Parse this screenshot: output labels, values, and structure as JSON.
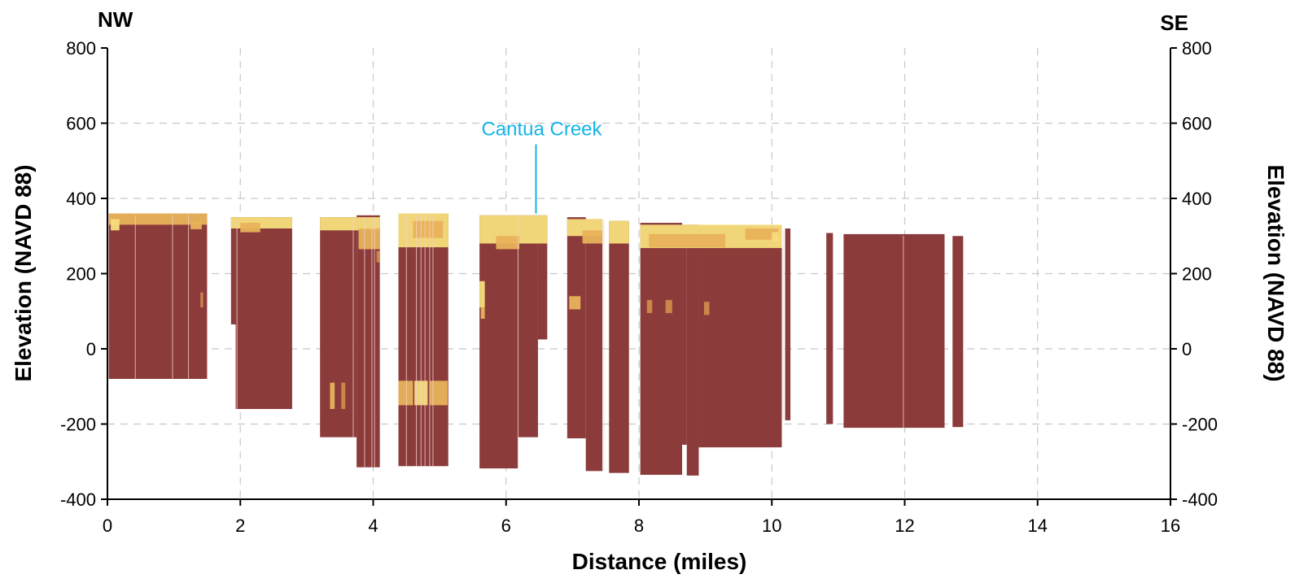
{
  "chart_data": {
    "type": "bar",
    "xlabel": "Distance (miles)",
    "ylabel": "Elevation (NAVD 88)",
    "ylabel_right": "Elevation (NAVD 88)",
    "corner_labels": {
      "left": "NW",
      "right": "SE"
    },
    "xlim": [
      0,
      16
    ],
    "ylim": [
      -400,
      800
    ],
    "x_ticks": [
      "0",
      "2",
      "4",
      "6",
      "8",
      "10",
      "12",
      "14",
      "16"
    ],
    "y_ticks": [
      "-400",
      "-200",
      "0",
      "200",
      "400",
      "600",
      "800"
    ],
    "y_ticks_right": [
      "-400",
      "-200",
      "0",
      "200",
      "400",
      "600",
      "800"
    ],
    "grid": true,
    "colors": {
      "base": "#8c3b3b",
      "light": "#f7dd7c",
      "mid": "#e8b25a",
      "dark": "#cf8a4a",
      "annotation": "#14b4e8",
      "gap": "#f0d0cc"
    },
    "annotations": [
      {
        "text": "Cantua Creek",
        "x": 6.45,
        "y": 360
      }
    ],
    "segments": [
      {
        "x0": 0.02,
        "x1": 1.5,
        "top": 360,
        "bottom": -80
      },
      {
        "x0": 1.86,
        "x1": 1.93,
        "top": 350,
        "bottom": 65
      },
      {
        "x0": 1.93,
        "x1": 2.78,
        "top": 350,
        "bottom": -160
      },
      {
        "x0": 3.2,
        "x1": 3.75,
        "top": 350,
        "bottom": -235
      },
      {
        "x0": 3.75,
        "x1": 4.1,
        "top": 355,
        "bottom": -315
      },
      {
        "x0": 4.38,
        "x1": 5.13,
        "top": 360,
        "bottom": -312
      },
      {
        "x0": 5.6,
        "x1": 6.18,
        "top": 355,
        "bottom": -318
      },
      {
        "x0": 6.18,
        "x1": 6.48,
        "top": 355,
        "bottom": -235
      },
      {
        "x0": 6.48,
        "x1": 6.62,
        "top": 355,
        "bottom": 25
      },
      {
        "x0": 6.92,
        "x1": 7.2,
        "top": 350,
        "bottom": -238
      },
      {
        "x0": 7.2,
        "x1": 7.45,
        "top": 345,
        "bottom": -325
      },
      {
        "x0": 7.55,
        "x1": 7.85,
        "top": 340,
        "bottom": -330
      },
      {
        "x0": 8.02,
        "x1": 8.65,
        "top": 335,
        "bottom": -335
      },
      {
        "x0": 8.65,
        "x1": 8.72,
        "top": 330,
        "bottom": -255
      },
      {
        "x0": 8.72,
        "x1": 8.9,
        "top": 330,
        "bottom": -337
      },
      {
        "x0": 8.9,
        "x1": 10.15,
        "top": 328,
        "bottom": -262
      },
      {
        "x0": 10.2,
        "x1": 10.28,
        "top": 320,
        "bottom": -190
      },
      {
        "x0": 10.82,
        "x1": 10.92,
        "top": 308,
        "bottom": -200
      },
      {
        "x0": 11.08,
        "x1": 12.6,
        "top": 305,
        "bottom": -210
      },
      {
        "x0": 12.72,
        "x1": 12.88,
        "top": 300,
        "bottom": -208
      }
    ],
    "patches": [
      {
        "x0": 0.02,
        "x1": 1.5,
        "top": 360,
        "bottom": 330,
        "tone": "mid"
      },
      {
        "x0": 0.05,
        "x1": 0.18,
        "top": 345,
        "bottom": 315,
        "tone": "light"
      },
      {
        "x0": 1.25,
        "x1": 1.42,
        "top": 340,
        "bottom": 318,
        "tone": "mid"
      },
      {
        "x0": 1.4,
        "x1": 1.44,
        "top": 150,
        "bottom": 110,
        "tone": "dark"
      },
      {
        "x0": 1.86,
        "x1": 2.78,
        "top": 350,
        "bottom": 320,
        "tone": "light"
      },
      {
        "x0": 2.0,
        "x1": 2.3,
        "top": 335,
        "bottom": 310,
        "tone": "mid"
      },
      {
        "x0": 3.2,
        "x1": 4.1,
        "top": 350,
        "bottom": 315,
        "tone": "light"
      },
      {
        "x0": 3.78,
        "x1": 4.1,
        "top": 320,
        "bottom": 265,
        "tone": "mid"
      },
      {
        "x0": 4.05,
        "x1": 4.1,
        "top": 260,
        "bottom": 230,
        "tone": "dark"
      },
      {
        "x0": 3.35,
        "x1": 3.42,
        "top": -90,
        "bottom": -160,
        "tone": "mid"
      },
      {
        "x0": 3.52,
        "x1": 3.58,
        "top": -90,
        "bottom": -160,
        "tone": "dark"
      },
      {
        "x0": 4.38,
        "x1": 5.13,
        "top": 360,
        "bottom": 270,
        "tone": "light"
      },
      {
        "x0": 4.6,
        "x1": 5.05,
        "top": 340,
        "bottom": 295,
        "tone": "mid"
      },
      {
        "x0": 4.38,
        "x1": 4.6,
        "top": -85,
        "bottom": -150,
        "tone": "mid"
      },
      {
        "x0": 4.62,
        "x1": 4.82,
        "top": -85,
        "bottom": -150,
        "tone": "light"
      },
      {
        "x0": 4.85,
        "x1": 5.12,
        "top": -85,
        "bottom": -150,
        "tone": "mid"
      },
      {
        "x0": 5.6,
        "x1": 6.62,
        "top": 355,
        "bottom": 280,
        "tone": "light"
      },
      {
        "x0": 5.85,
        "x1": 6.2,
        "top": 300,
        "bottom": 265,
        "tone": "mid"
      },
      {
        "x0": 5.6,
        "x1": 5.68,
        "top": 180,
        "bottom": 110,
        "tone": "light"
      },
      {
        "x0": 5.62,
        "x1": 5.68,
        "top": 110,
        "bottom": 80,
        "tone": "mid"
      },
      {
        "x0": 6.92,
        "x1": 7.45,
        "top": 345,
        "bottom": 300,
        "tone": "light"
      },
      {
        "x0": 7.15,
        "x1": 7.45,
        "top": 315,
        "bottom": 280,
        "tone": "mid"
      },
      {
        "x0": 6.95,
        "x1": 7.12,
        "top": 140,
        "bottom": 105,
        "tone": "mid"
      },
      {
        "x0": 7.55,
        "x1": 7.85,
        "top": 340,
        "bottom": 280,
        "tone": "light"
      },
      {
        "x0": 8.02,
        "x1": 10.15,
        "top": 330,
        "bottom": 268,
        "tone": "light"
      },
      {
        "x0": 8.15,
        "x1": 9.3,
        "top": 305,
        "bottom": 270,
        "tone": "mid"
      },
      {
        "x0": 9.6,
        "x1": 10.1,
        "top": 320,
        "bottom": 290,
        "tone": "mid"
      },
      {
        "x0": 8.12,
        "x1": 8.2,
        "top": 130,
        "bottom": 95,
        "tone": "dark"
      },
      {
        "x0": 8.4,
        "x1": 8.5,
        "top": 130,
        "bottom": 95,
        "tone": "dark"
      },
      {
        "x0": 8.98,
        "x1": 9.06,
        "top": 125,
        "bottom": 90,
        "tone": "dark"
      },
      {
        "x0": 10.0,
        "x1": 10.1,
        "top": 310,
        "bottom": 285,
        "tone": "light"
      }
    ]
  }
}
